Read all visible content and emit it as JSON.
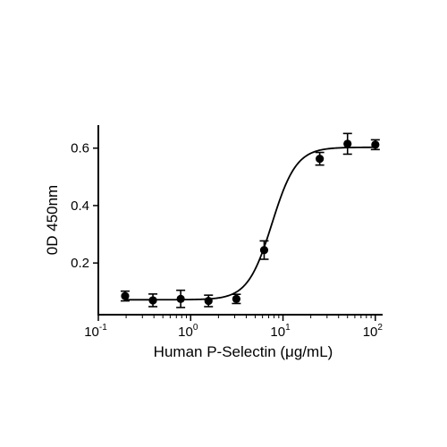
{
  "chart_data": {
    "type": "scatter",
    "title": "",
    "xlabel": "Human P-Selectin (μg/mL)",
    "ylabel": "0D 450nm",
    "x_scale": "log",
    "xlim": [
      0.1,
      120
    ],
    "ylim": [
      0.02,
      0.68
    ],
    "x_ticks": [
      {
        "base": "10",
        "exp": "-1"
      },
      {
        "base": "10",
        "exp": "0"
      },
      {
        "base": "10",
        "exp": "1"
      },
      {
        "base": "10",
        "exp": "2"
      }
    ],
    "y_ticks": [
      "0.2",
      "0.4",
      "0.6"
    ],
    "grid": false,
    "legend": "none",
    "series": [
      {
        "x": [
          0.195,
          0.39,
          0.78,
          1.56,
          3.125,
          6.25,
          25,
          50,
          100
        ],
        "y": [
          0.085,
          0.07,
          0.075,
          0.068,
          0.075,
          0.245,
          0.563,
          0.615,
          0.612
        ],
        "err": [
          0.017,
          0.022,
          0.03,
          0.02,
          0.016,
          0.032,
          0.022,
          0.036,
          0.017
        ]
      }
    ],
    "fit": {
      "model": "4PL",
      "bottom": 0.072,
      "top": 0.603,
      "ec50": 7.6,
      "hill": 3.3
    }
  }
}
